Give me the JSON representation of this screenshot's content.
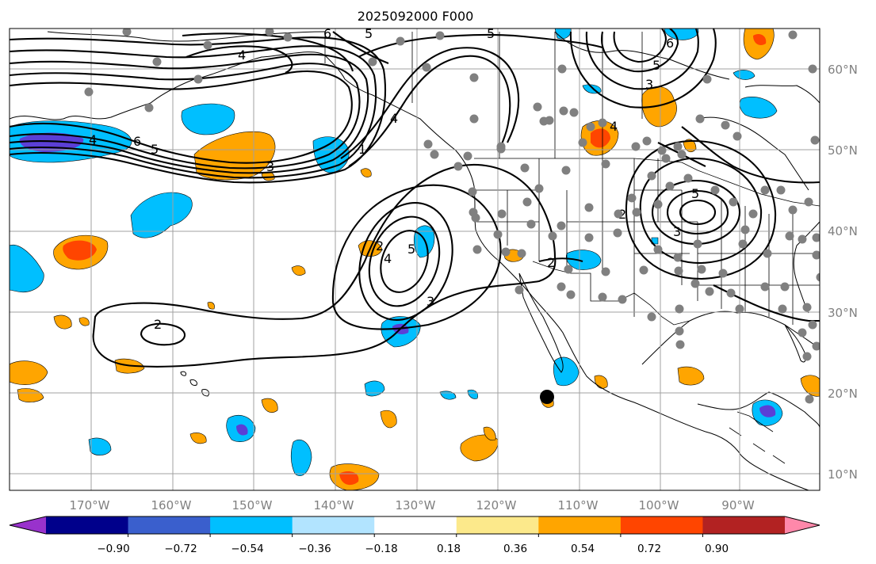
{
  "figure": {
    "title": "2025092000 F000"
  },
  "map": {
    "lon_labels": [
      "170°W",
      "160°W",
      "150°W",
      "140°W",
      "130°W",
      "120°W",
      "110°W",
      "100°W",
      "90°W"
    ],
    "lat_labels": [
      "60°N",
      "50°N",
      "40°N",
      "30°N",
      "20°N",
      "10°N"
    ],
    "contour_labels": [
      "6",
      "5",
      "5",
      "4",
      "4",
      "6",
      "5",
      "3",
      "1",
      "4",
      "5",
      "3",
      "2",
      "2",
      "3",
      "4",
      "2",
      "5",
      "6",
      "5",
      "3",
      "4",
      "2"
    ],
    "shading_colors": {
      "strong_negative": "#5b3fd6",
      "negative": "#00bfff",
      "positive": "#ffa500",
      "strong_positive": "#ff4500"
    },
    "marker_color": "#000000",
    "station_color": "#808080"
  },
  "colorbar": {
    "tick_labels": [
      "−0.90",
      "−0.72",
      "−0.54",
      "−0.36",
      "−0.18",
      "0.18",
      "0.36",
      "0.54",
      "0.72",
      "0.90"
    ],
    "colors": [
      "#9932cc",
      "#00008b",
      "#3a5fcd",
      "#00bfff",
      "#b2e4ff",
      "#ffffff",
      "#fce98b",
      "#ffa500",
      "#ff4500",
      "#b22222",
      "#ff88aa"
    ]
  }
}
